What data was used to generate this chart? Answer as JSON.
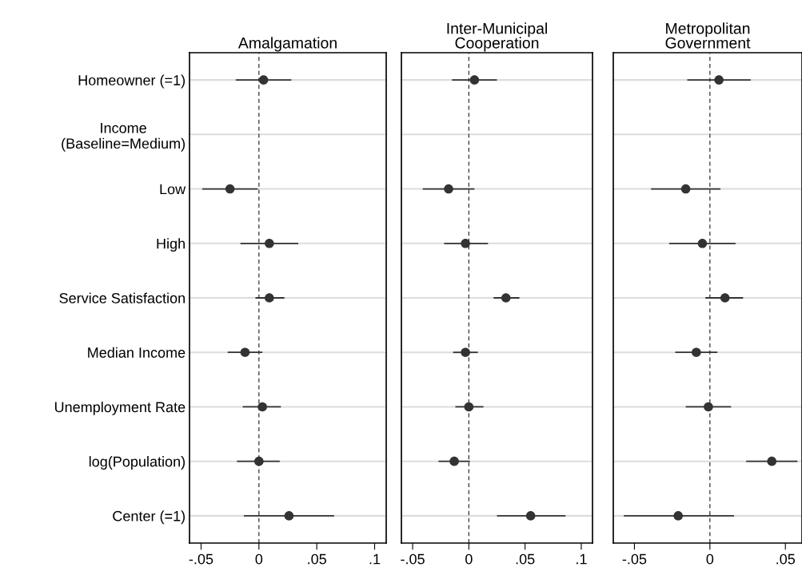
{
  "chart_data": [
    {
      "type": "scatter",
      "orientation": "horizontal",
      "title": "Amalgamation",
      "categories": [
        "Homeowner (=1)",
        "Income\n(Baseline=Medium)",
        "Low",
        "High",
        "Service Satisfaction",
        "Median Income",
        "Unemployment Rate",
        "log(Population)",
        "Center (=1)"
      ],
      "series": [
        {
          "color": "#333333",
          "values": [
            0.004,
            null,
            -0.025,
            0.009,
            0.009,
            -0.012,
            0.003,
            0.0,
            0.026
          ],
          "errors": [
            [
              -0.02,
              0.028
            ],
            null,
            [
              -0.049,
              -0.001
            ],
            [
              -0.016,
              0.034
            ],
            [
              -0.003,
              0.022
            ],
            [
              -0.027,
              0.003
            ],
            [
              -0.014,
              0.019
            ],
            [
              -0.019,
              0.018
            ],
            [
              -0.013,
              0.065
            ]
          ]
        }
      ],
      "xlim": [
        -0.06,
        0.11
      ],
      "xticks": [
        {
          "value": -0.05,
          "label": "-.05"
        },
        0,
        {
          "value": 0.05,
          "label": ".05"
        },
        {
          "value": 0.1,
          "label": ".1"
        }
      ],
      "ref_lines": [
        {
          "axis": "x",
          "value": 0,
          "line_style": "dashed",
          "color": "#333333"
        }
      ],
      "grid": "y",
      "marker": "circle"
    },
    {
      "type": "scatter",
      "orientation": "horizontal",
      "title": "Inter-Municipal\nCooperation",
      "categories": [
        null,
        null,
        null,
        null,
        null,
        null,
        null,
        null,
        null
      ],
      "series": [
        {
          "color": "#333333",
          "values": [
            0.005,
            null,
            -0.018,
            -0.003,
            0.033,
            -0.003,
            0.0,
            -0.013,
            0.055
          ],
          "errors": [
            [
              -0.015,
              0.025
            ],
            null,
            [
              -0.041,
              0.005
            ],
            [
              -0.022,
              0.017
            ],
            [
              0.022,
              0.045
            ],
            [
              -0.014,
              0.008
            ],
            [
              -0.012,
              0.013
            ],
            [
              -0.027,
              0.001
            ],
            [
              0.025,
              0.086
            ]
          ]
        }
      ],
      "xlim": [
        -0.06,
        0.11
      ],
      "xticks": [
        {
          "value": -0.05,
          "label": "-.05"
        },
        0,
        {
          "value": 0.05,
          "label": ".05"
        },
        {
          "value": 0.1,
          "label": ".1"
        }
      ],
      "ref_lines": [
        {
          "axis": "x",
          "value": 0,
          "line_style": "dashed",
          "color": "#333333"
        }
      ],
      "grid": "y",
      "marker": "circle"
    },
    {
      "type": "scatter",
      "orientation": "horizontal",
      "title": "Metropolitan\nGovernment",
      "categories": [
        null,
        null,
        null,
        null,
        null,
        null,
        null,
        null,
        null
      ],
      "series": [
        {
          "color": "#333333",
          "values": [
            0.006,
            null,
            -0.016,
            -0.005,
            0.01,
            -0.009,
            -0.001,
            0.041,
            -0.021
          ],
          "errors": [
            [
              -0.015,
              0.027
            ],
            null,
            [
              -0.039,
              0.007
            ],
            [
              -0.027,
              0.017
            ],
            [
              -0.003,
              0.022
            ],
            [
              -0.023,
              0.005
            ],
            [
              -0.016,
              0.014
            ],
            [
              0.024,
              0.058
            ],
            [
              -0.057,
              0.016
            ]
          ]
        }
      ],
      "xlim": [
        -0.064,
        0.061
      ],
      "xticks": [
        {
          "value": -0.05,
          "label": "-.05"
        },
        0,
        {
          "value": 0.05,
          "label": ".05"
        }
      ],
      "ref_lines": [
        {
          "axis": "x",
          "value": 0,
          "line_style": "dashed",
          "color": "#333333"
        }
      ],
      "grid": "y",
      "marker": "circle"
    }
  ]
}
